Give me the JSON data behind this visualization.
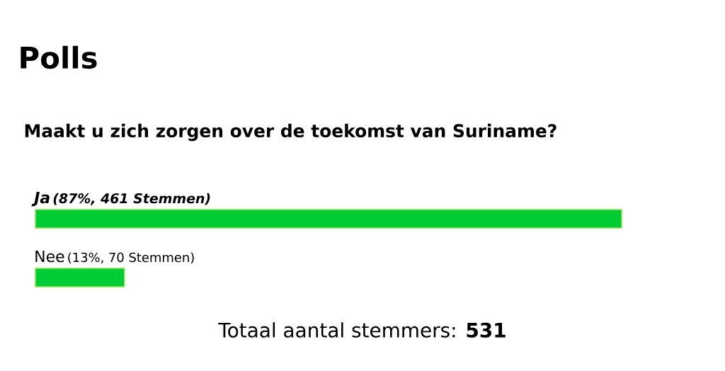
{
  "chart_data": {
    "type": "bar",
    "orientation": "horizontal",
    "title": "Polls",
    "subtitle": "Maakt u zich zorgen over de toekomst van Suriname?",
    "categories": [
      "Ja",
      "Nee"
    ],
    "values": [
      461,
      70
    ],
    "value_labels": [
      "(87%, 461 Stemmen)",
      "(13%, 70 Stemmen)"
    ],
    "color": "#00cc33",
    "annotations": [
      "Totaal aantal stemmers: **531**"
    ]
  }
}
